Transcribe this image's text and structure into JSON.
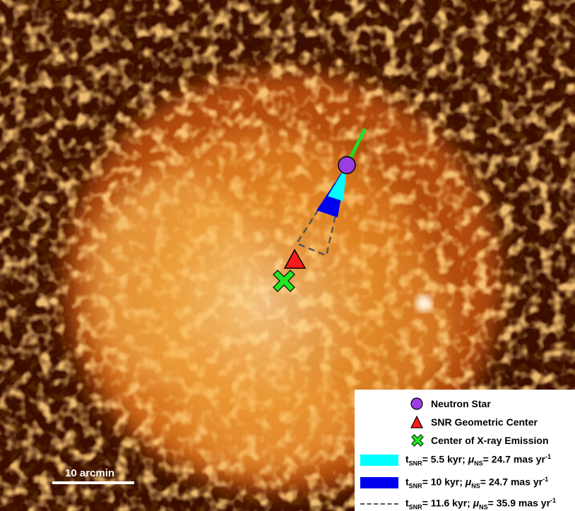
{
  "colors": {
    "neutron_star": "#9b3de0",
    "snr_center": "#ff1a1a",
    "xray_center": "#22e622",
    "motion_arrow": "#22dd22",
    "cone_5_5kyr": "#00ffff",
    "cone_10kyr": "#0000ee",
    "cone_11_6kyr_outline": "#555555",
    "scalebar": "#ffffff"
  },
  "icons": {
    "neutron_star": "circle",
    "snr_center": "triangle",
    "xray_center": "cross-x"
  },
  "scalebar": {
    "label": "10 arcmin"
  },
  "legend": {
    "neutron_star": "Neutron Star",
    "snr_center": "SNR Geometric Center",
    "xray_center": "Center of X-ray Emission",
    "cone1": {
      "t": "t",
      "t_sub": "SNR",
      "t_val": "= 5.5 kyr; ",
      "mu": "μ",
      "mu_sub": "NS",
      "mu_val": "= 24.7 mas yr",
      "exp": "-1"
    },
    "cone2": {
      "t": "t",
      "t_sub": "SNR",
      "t_val": "= 10 kyr; ",
      "mu": "μ",
      "mu_sub": "NS",
      "mu_val": "= 24.7 mas yr",
      "exp": "-1"
    },
    "cone3": {
      "t": "t",
      "t_sub": "SNR",
      "t_val": "= 11.6 kyr; ",
      "mu": "μ",
      "mu_sub": "NS",
      "mu_val": "= 35.9 mas yr",
      "exp": "-1"
    }
  }
}
